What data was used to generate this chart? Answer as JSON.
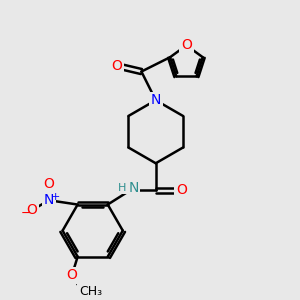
{
  "bg_color": "#e8e8e8",
  "bond_color": "#000000",
  "bond_width": 1.8,
  "atom_colors": {
    "O": "#ff0000",
    "N": "#0000ff",
    "N_amide": "#2f8f8f",
    "C": "#000000"
  },
  "font_size_atom": 10,
  "fig_width": 3.0,
  "fig_height": 3.0,
  "dpi": 100
}
